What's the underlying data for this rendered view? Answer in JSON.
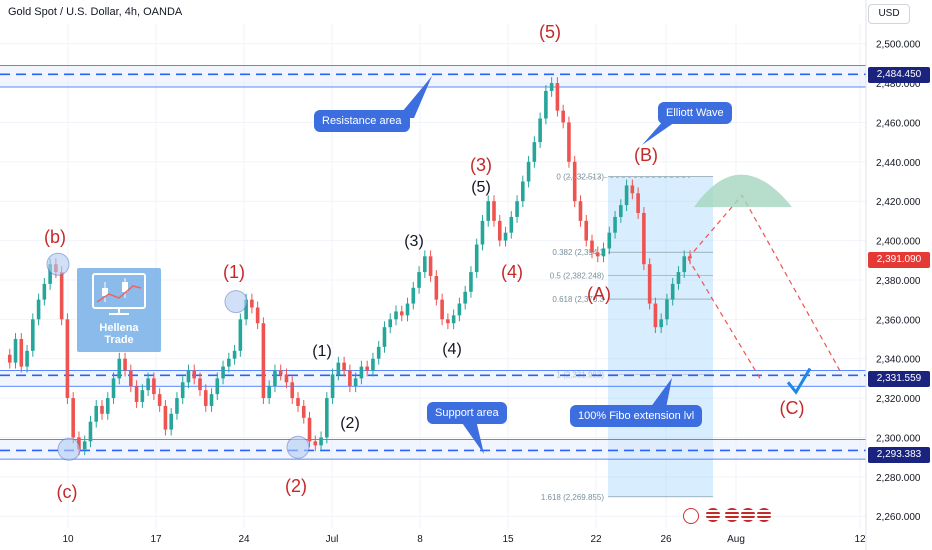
{
  "header": {
    "title": "Gold Spot / U.S. Dollar, 4h, OANDA",
    "currency": "USD"
  },
  "price_badges": {
    "resistance": "2,484.450",
    "current": "2,391.090",
    "support_upper": "2,331.559",
    "support_lower": "2,293.383"
  },
  "callouts": {
    "resistance_area": "Resistance area",
    "support_area": "Support area",
    "elliott_wave": "Elliott Wave",
    "fibo_extension": "100% Fibo extension lvl"
  },
  "watermark": {
    "line1": "Hellena",
    "line2": "Trade"
  },
  "colors": {
    "up": "#26a69a",
    "down": "#ef5350",
    "line": "#2962ff",
    "wave_red": "#c62828",
    "wave_dark": "#131722",
    "fibo_fill": "#90caf9",
    "current_badge": "#e53935",
    "level_badge": "#1a237e"
  },
  "chart_data": {
    "type": "candlestick",
    "symbol": "Gold Spot / U.S. Dollar",
    "timeframe": "4h",
    "source": "OANDA",
    "y_axis": {
      "ticks": [
        2500,
        2480,
        2460,
        2440,
        2420,
        2400,
        2380,
        2360,
        2340,
        2320,
        2300,
        2280,
        2260
      ],
      "tick_labels": [
        "2,500.000",
        "2,480.000",
        "2,460.000",
        "2,440.000",
        "2,420.000",
        "2,400.000",
        "2,380.000",
        "2,360.000",
        "2,340.000",
        "2,320.000",
        "2,300.000",
        "2,280.000",
        "2,260.000"
      ],
      "ylim": [
        2254,
        2510
      ]
    },
    "x_axis": {
      "ticks": [
        "10",
        "17",
        "24",
        "Jul",
        "8",
        "15",
        "22",
        "26",
        "Aug",
        "12"
      ]
    },
    "levels": [
      {
        "name": "resistance",
        "value": 2484.45
      },
      {
        "name": "support",
        "value": 2331.559
      },
      {
        "name": "support-low",
        "value": 2293.383
      }
    ],
    "fibo_labels": [
      {
        "text": "0 (2,432.513)",
        "value": 2432.513
      },
      {
        "text": "0.382 (2,394.1",
        "value": 2394.1
      },
      {
        "text": "0.5 (2,382.248)",
        "value": 2382.248
      },
      {
        "text": "0.618 (2,370.3",
        "value": 2370.3
      },
      {
        "text": "1 (2,331.983)",
        "value": 2331.983
      },
      {
        "text": "1.618 (2,269.855)",
        "value": 2269.855
      }
    ],
    "wave_labels": [
      {
        "text": "(b)",
        "color": "red"
      },
      {
        "text": "(c)",
        "color": "red"
      },
      {
        "text": "(1)",
        "color": "red"
      },
      {
        "text": "(2)",
        "color": "red"
      },
      {
        "text": "(1)",
        "color": "dark"
      },
      {
        "text": "(2)",
        "color": "dark"
      },
      {
        "text": "(3)",
        "color": "dark"
      },
      {
        "text": "(4)",
        "color": "dark"
      },
      {
        "text": "(3)",
        "color": "red"
      },
      {
        "text": "(5)",
        "color": "dark"
      },
      {
        "text": "(4)",
        "color": "red"
      },
      {
        "text": "(5)",
        "color": "red"
      },
      {
        "text": "(A)",
        "color": "red"
      },
      {
        "text": "(B)",
        "color": "red"
      },
      {
        "text": "(C)",
        "color": "red"
      }
    ],
    "price_path": [
      2342,
      2338,
      2350,
      2336,
      2344,
      2360,
      2370,
      2378,
      2388,
      2384,
      2360,
      2320,
      2300,
      2294,
      2298,
      2308,
      2316,
      2312,
      2320,
      2330,
      2340,
      2334,
      2326,
      2318,
      2324,
      2330,
      2322,
      2316,
      2304,
      2312,
      2320,
      2328,
      2334,
      2330,
      2324,
      2316,
      2322,
      2330,
      2336,
      2340,
      2344,
      2360,
      2370,
      2366,
      2358,
      2320,
      2326,
      2334,
      2332,
      2328,
      2320,
      2316,
      2310,
      2298,
      2296,
      2300,
      2320,
      2332,
      2338,
      2334,
      2326,
      2330,
      2336,
      2334,
      2340,
      2346,
      2356,
      2360,
      2364,
      2362,
      2368,
      2376,
      2384,
      2392,
      2382,
      2370,
      2360,
      2358,
      2362,
      2368,
      2374,
      2384,
      2398,
      2410,
      2420,
      2410,
      2400,
      2404,
      2412,
      2420,
      2430,
      2440,
      2450,
      2462,
      2476,
      2480,
      2466,
      2460,
      2440,
      2420,
      2410,
      2400,
      2394,
      2392,
      2396,
      2404,
      2412,
      2418,
      2428,
      2424,
      2414,
      2388,
      2368,
      2356,
      2360,
      2370,
      2378,
      2384,
      2392,
      2391
    ]
  }
}
